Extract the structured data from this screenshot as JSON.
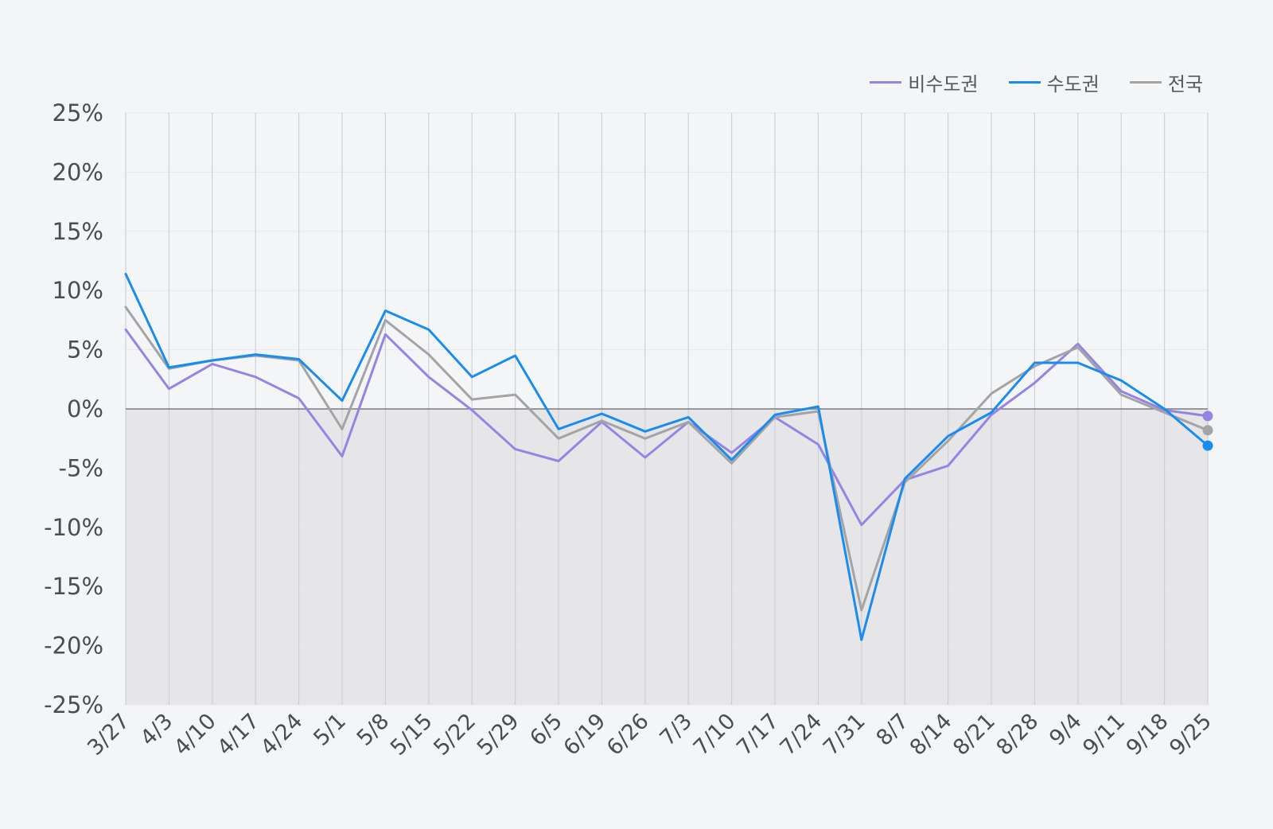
{
  "chart_data": {
    "type": "line",
    "title": "",
    "xlabel": "",
    "ylabel": "",
    "ylim": [
      -25,
      25
    ],
    "y_ticks": [
      25,
      20,
      15,
      10,
      5,
      0,
      -5,
      -10,
      -15,
      -20,
      -25
    ],
    "y_tick_suffix": "%",
    "categories": [
      "3/27",
      "4/3",
      "4/10",
      "4/17",
      "4/24",
      "5/1",
      "5/8",
      "5/15",
      "5/22",
      "5/29",
      "6/5",
      "6/19",
      "6/26",
      "7/3",
      "7/10",
      "7/17",
      "7/24",
      "7/31",
      "8/7",
      "8/14",
      "8/21",
      "8/28",
      "9/4",
      "9/11",
      "9/18",
      "9/25"
    ],
    "grid": {
      "vertical": true,
      "horizontal": true
    },
    "negative_area_shaded": true,
    "legend_position": "top-right",
    "series": [
      {
        "name": "비수도권",
        "color": "#9584e4",
        "values": [
          6.7,
          1.7,
          3.8,
          2.7,
          0.9,
          -4.0,
          6.3,
          2.7,
          -0.1,
          -3.4,
          -4.4,
          -1.1,
          -4.1,
          -1.1,
          -3.7,
          -0.7,
          -3.0,
          -9.8,
          -6.0,
          -4.8,
          -0.5,
          2.2,
          5.5,
          1.5,
          -0.1,
          -0.6
        ]
      },
      {
        "name": "수도권",
        "color": "#1a8cf0",
        "values": [
          11.4,
          3.5,
          4.1,
          4.6,
          4.2,
          0.7,
          8.3,
          6.7,
          2.7,
          4.5,
          -1.7,
          -0.4,
          -1.9,
          -0.7,
          -4.3,
          -0.5,
          0.2,
          -19.5,
          -5.9,
          -2.3,
          -0.3,
          3.9,
          3.9,
          2.4,
          0.0,
          -3.1
        ]
      },
      {
        "name": "전국",
        "color": "#a4a4a4",
        "values": [
          8.6,
          3.4,
          4.1,
          4.5,
          4.1,
          -1.7,
          7.5,
          4.6,
          0.8,
          1.2,
          -2.5,
          -1.0,
          -2.5,
          -1.1,
          -4.6,
          -0.7,
          -0.2,
          -17.0,
          -6.2,
          -2.7,
          1.3,
          3.6,
          5.2,
          1.2,
          -0.3,
          -1.8
        ]
      }
    ],
    "legend_order": [
      0,
      1,
      2
    ],
    "draw_order": [
      0,
      2,
      1
    ]
  }
}
